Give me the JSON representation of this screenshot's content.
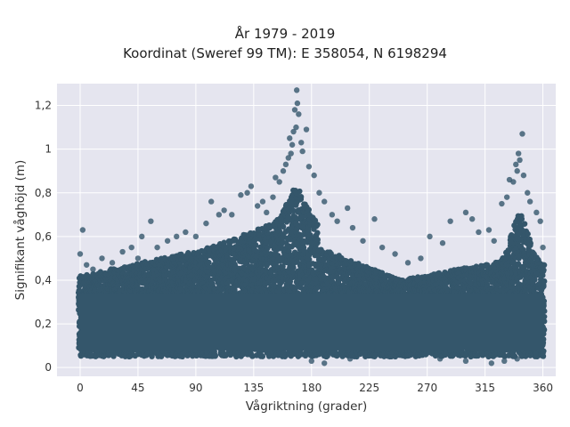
{
  "title_line1": "År 1979 - 2019",
  "title_line2": "Koordinat (Sweref 99 TM): E 358054, N 6198294",
  "colors": {
    "plot_bg": "#e5e5ef",
    "grid": "#ffffff",
    "marker": "#34566b"
  },
  "chart_data": {
    "type": "scatter",
    "xlabel": "Vågriktning (grader)",
    "ylabel": "Signifikant våghöjd (m)",
    "xlim": [
      -18,
      370
    ],
    "ylim": [
      -0.04,
      1.3
    ],
    "xticks": [
      0,
      45,
      90,
      135,
      180,
      225,
      270,
      315,
      360
    ],
    "xtick_labels": [
      "0",
      "45",
      "90",
      "135",
      "180",
      "225",
      "270",
      "315",
      "360"
    ],
    "yticks": [
      0,
      0.2,
      0.4,
      0.6,
      0.8,
      1,
      1.2
    ],
    "ytick_labels": [
      "0",
      "0,2",
      "0,4",
      "0,6",
      "0,8",
      "1",
      "1,2"
    ],
    "grid": true,
    "legend": "none",
    "series": [
      {
        "values_note": "",
        "points": [
          [
            0,
            0.52
          ],
          [
            2,
            0.63
          ],
          [
            5,
            0.47
          ],
          [
            10,
            0.45
          ],
          [
            17,
            0.5
          ],
          [
            25,
            0.48
          ],
          [
            33,
            0.53
          ],
          [
            40,
            0.55
          ],
          [
            45,
            0.5
          ],
          [
            48,
            0.6
          ],
          [
            55,
            0.67
          ],
          [
            60,
            0.55
          ],
          [
            68,
            0.58
          ],
          [
            75,
            0.6
          ],
          [
            82,
            0.62
          ],
          [
            90,
            0.6
          ],
          [
            98,
            0.66
          ],
          [
            102,
            0.76
          ],
          [
            108,
            0.7
          ],
          [
            112,
            0.72
          ],
          [
            118,
            0.7
          ],
          [
            125,
            0.79
          ],
          [
            130,
            0.8
          ],
          [
            133,
            0.83
          ],
          [
            138,
            0.74
          ],
          [
            142,
            0.76
          ],
          [
            145,
            0.71
          ],
          [
            150,
            0.78
          ],
          [
            152,
            0.87
          ],
          [
            155,
            0.85
          ],
          [
            158,
            0.9
          ],
          [
            160,
            0.93
          ],
          [
            162,
            0.96
          ],
          [
            163,
            1.05
          ],
          [
            164,
            0.98
          ],
          [
            165,
            1.02
          ],
          [
            166,
            1.08
          ],
          [
            167,
            1.18
          ],
          [
            168,
            1.1
          ],
          [
            169,
            1.21
          ],
          [
            170,
            1.16
          ],
          [
            168.5,
            1.27
          ],
          [
            172,
            1.03
          ],
          [
            173,
            0.99
          ],
          [
            176,
            1.09
          ],
          [
            178,
            0.92
          ],
          [
            182,
            0.88
          ],
          [
            186,
            0.8
          ],
          [
            190,
            0.76
          ],
          [
            196,
            0.7
          ],
          [
            200,
            0.67
          ],
          [
            208,
            0.73
          ],
          [
            212,
            0.64
          ],
          [
            220,
            0.58
          ],
          [
            229,
            0.68
          ],
          [
            235,
            0.55
          ],
          [
            245,
            0.52
          ],
          [
            255,
            0.48
          ],
          [
            265,
            0.5
          ],
          [
            272,
            0.6
          ],
          [
            282,
            0.57
          ],
          [
            288,
            0.67
          ],
          [
            300,
            0.71
          ],
          [
            305,
            0.68
          ],
          [
            310,
            0.62
          ],
          [
            318,
            0.63
          ],
          [
            322,
            0.58
          ],
          [
            328,
            0.75
          ],
          [
            332,
            0.78
          ],
          [
            334,
            0.86
          ],
          [
            337,
            0.85
          ],
          [
            339,
            0.93
          ],
          [
            340,
            0.9
          ],
          [
            341,
            0.98
          ],
          [
            342,
            0.95
          ],
          [
            344,
            1.07
          ],
          [
            345,
            0.88
          ],
          [
            348,
            0.8
          ],
          [
            350,
            0.76
          ],
          [
            355,
            0.71
          ],
          [
            358,
            0.67
          ],
          [
            360,
            0.55
          ],
          [
            180,
            0.03
          ],
          [
            190,
            0.02
          ],
          [
            210,
            0.04
          ],
          [
            280,
            0.04
          ],
          [
            300,
            0.03
          ],
          [
            320,
            0.02
          ],
          [
            330,
            0.03
          ],
          [
            340,
            0.04
          ]
        ]
      }
    ]
  }
}
